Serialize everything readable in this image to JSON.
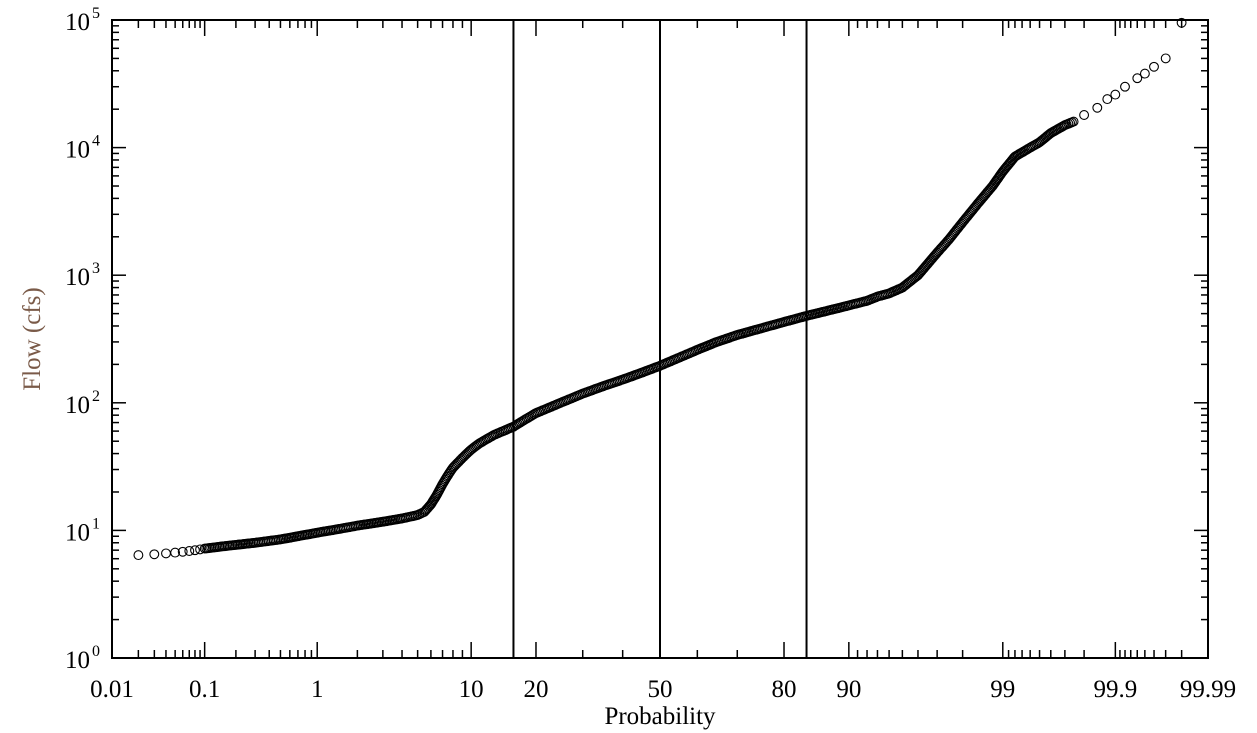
{
  "chart_data": {
    "type": "scatter",
    "title": "",
    "xlabel": "Probability",
    "ylabel": "Flow (cfs)",
    "x_scale": "normal-probability",
    "y_scale": "log10",
    "xlim": [
      0.01,
      99.99
    ],
    "ylim": [
      1,
      100000
    ],
    "colors": {
      "xlabel": "#000000",
      "ylabel": "#7a5a48",
      "markers": "#000000"
    },
    "x_tick_labels": [
      "0.01",
      "0.1",
      "1",
      "10",
      "20",
      "50",
      "80",
      "90",
      "99",
      "99.9",
      "99.99"
    ],
    "x_tick_values": [
      0.01,
      0.1,
      1,
      10,
      20,
      50,
      80,
      90,
      99,
      99.9,
      99.99
    ],
    "y_ticks": [
      {
        "base": "10",
        "exp": "0",
        "value": 1
      },
      {
        "base": "10",
        "exp": "1",
        "value": 10
      },
      {
        "base": "10",
        "exp": "2",
        "value": 100
      },
      {
        "base": "10",
        "exp": "3",
        "value": 1000
      },
      {
        "base": "10",
        "exp": "4",
        "value": 10000
      },
      {
        "base": "10",
        "exp": "5",
        "value": 100000
      }
    ],
    "vertical_lines": [
      16,
      50,
      84
    ],
    "grid": false,
    "legend": "none",
    "series": [
      {
        "x": [
          0.02,
          0.03,
          0.04,
          0.05,
          0.06,
          0.07,
          0.08,
          0.09,
          0.1,
          0.15,
          0.2,
          0.3,
          0.5,
          0.7,
          1,
          1.5,
          2,
          3,
          4,
          5,
          5.5,
          6,
          6.5,
          7,
          7.5,
          8,
          9,
          10,
          11,
          12,
          13,
          14,
          15,
          16,
          18,
          20,
          25,
          30,
          35,
          40,
          45,
          50,
          55,
          60,
          65,
          70,
          75,
          80,
          84,
          88,
          90,
          92,
          93,
          94,
          95,
          96,
          97,
          97.5,
          98,
          98.5,
          98.8,
          99,
          99.2,
          99.4,
          99.5,
          99.6,
          99.7,
          99.75,
          99.8,
          99.85,
          99.88,
          99.9,
          99.92,
          99.94,
          99.95,
          99.96,
          99.97,
          99.98
        ],
        "y": [
          6.4,
          6.5,
          6.6,
          6.7,
          6.8,
          6.9,
          7,
          7.1,
          7.2,
          7.5,
          7.7,
          8,
          8.5,
          9,
          9.6,
          10.3,
          10.9,
          11.7,
          12.4,
          13.2,
          14,
          16,
          19,
          23,
          27,
          31,
          37,
          43,
          48,
          52,
          56,
          59,
          62,
          65,
          74,
          83,
          100,
          118,
          135,
          152,
          172,
          195,
          225,
          260,
          300,
          340,
          380,
          430,
          480,
          540,
          580,
          630,
          680,
          720,
          800,
          1000,
          1500,
          1900,
          2600,
          3800,
          5000,
          6500,
          8500,
          10000,
          11000,
          13000,
          15000,
          16000,
          18000,
          20500,
          24000,
          26000,
          30000,
          35000,
          38000,
          43000,
          50000,
          95000
        ]
      }
    ]
  }
}
